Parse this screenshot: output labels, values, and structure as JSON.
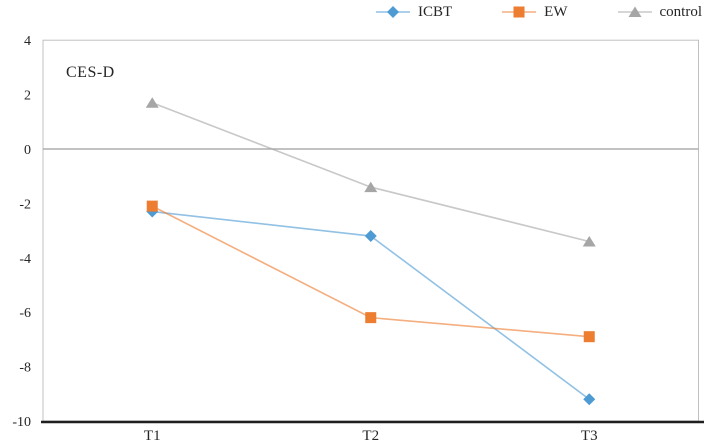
{
  "chart_data": {
    "type": "line",
    "title": "CES-D",
    "categories": [
      "T1",
      "T2",
      "T3"
    ],
    "series": [
      {
        "name": "ICBT",
        "marker": "diamond",
        "color": "#4E9BD4",
        "values": [
          -2.3,
          -3.2,
          -9.2
        ]
      },
      {
        "name": "EW",
        "marker": "square",
        "color": "#ED7D31",
        "values": [
          -2.1,
          -6.2,
          -6.9
        ]
      },
      {
        "name": "control",
        "marker": "triangle",
        "color": "#A6A6A6",
        "values": [
          1.7,
          -1.4,
          -3.4
        ]
      }
    ],
    "ylim": [
      -10,
      4
    ],
    "yticks": [
      4,
      2,
      0,
      -2,
      -4,
      -6,
      -8,
      -10
    ],
    "grid": "zero-line-only",
    "legend_position": "top-right",
    "colors": {
      "plot_border": "#C0C0C0",
      "zero_line": "#9E9E9E",
      "bottom_axis": "#1F1F1F",
      "text": "#262626"
    }
  }
}
